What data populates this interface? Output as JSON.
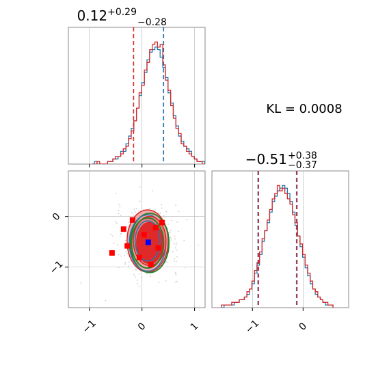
{
  "colors": {
    "blue": "#1f77b4",
    "red": "#d62728",
    "green": "#2a7f2a",
    "fill_outer": "#f2aaaa",
    "fill_mid": "#e77b7b",
    "fill_inner": "#e02a2a",
    "grid": "#b0b0b0",
    "scatter": "#cccccc",
    "blue_point": "#0000ff",
    "red_point": "#ff0000"
  },
  "chart_data": [
    {
      "type": "histogram",
      "panel": "top-left",
      "title": {
        "main": "0.12",
        "sup": "+0.29",
        "sub": "−0.28"
      },
      "xlim": [
        -1.4,
        1.2
      ],
      "xticks": [
        -1,
        0,
        1
      ],
      "grid": true,
      "bin_width": 0.05,
      "series": [
        {
          "color": "blue",
          "counts": [
            0,
            1,
            0,
            0,
            0,
            0,
            1,
            1,
            2,
            2,
            3,
            5,
            5,
            8,
            11,
            14,
            17,
            22,
            27,
            32,
            36,
            41,
            44,
            45,
            46,
            45,
            42,
            38,
            34,
            28,
            24,
            19,
            15,
            11,
            9,
            7,
            6,
            5,
            3,
            2,
            1,
            1,
            1
          ]
        },
        {
          "color": "red",
          "counts": [
            0,
            0,
            1,
            0,
            0,
            0,
            1,
            1,
            2,
            3,
            3,
            4,
            6,
            7,
            10,
            13,
            17,
            22,
            28,
            31,
            37,
            40,
            45,
            47,
            48,
            46,
            47,
            39,
            33,
            29,
            23,
            18,
            14,
            12,
            8,
            7,
            5,
            4,
            3,
            2,
            1,
            1,
            0
          ]
        }
      ],
      "vlines": [
        {
          "x": -0.16,
          "color": "red",
          "style": "dashed"
        },
        {
          "x": 0.41,
          "color": "red",
          "style": "dashed"
        },
        {
          "x": 0.41,
          "color": "blue",
          "style": "dashed"
        }
      ]
    },
    {
      "type": "histogram",
      "panel": "bottom-right",
      "title": {
        "main": "−0.51",
        "sup": "+0.38",
        "sub": "−0.37"
      },
      "xlim": [
        -1.8,
        0.9
      ],
      "xticks": [
        -1,
        0
      ],
      "grid": true,
      "bin_width": 0.05,
      "series": [
        {
          "color": "blue",
          "counts": [
            0,
            1,
            1,
            1,
            1,
            2,
            2,
            3,
            3,
            4,
            5,
            7,
            9,
            13,
            16,
            20,
            25,
            29,
            32,
            36,
            40,
            42,
            44,
            45,
            46,
            45,
            43,
            40,
            36,
            31,
            27,
            23,
            19,
            15,
            12,
            9,
            7,
            5,
            4,
            3,
            2,
            1,
            1,
            1
          ]
        },
        {
          "color": "red",
          "counts": [
            1,
            1,
            1,
            1,
            2,
            2,
            2,
            3,
            3,
            4,
            6,
            7,
            10,
            14,
            17,
            21,
            26,
            29,
            33,
            37,
            41,
            43,
            46,
            44,
            45,
            43,
            41,
            39,
            35,
            32,
            27,
            24,
            20,
            16,
            13,
            10,
            7,
            6,
            4,
            3,
            2,
            2,
            1,
            1
          ]
        }
      ],
      "vlines": [
        {
          "x": -0.89,
          "color": "blue",
          "style": "dashed"
        },
        {
          "x": -0.88,
          "color": "red",
          "style": "dashed"
        },
        {
          "x": -0.13,
          "color": "blue",
          "style": "dashed"
        },
        {
          "x": -0.12,
          "color": "red",
          "style": "dashed"
        }
      ]
    },
    {
      "type": "scatter",
      "panel": "bottom-left",
      "xlim": [
        -1.4,
        1.2
      ],
      "ylim": [
        -1.8,
        0.9
      ],
      "xticks": [
        -1,
        0,
        1
      ],
      "yticks": [
        0,
        -1
      ],
      "grid": true,
      "center": {
        "x": 0.12,
        "y": -0.51
      },
      "contours": [
        {
          "color": "red",
          "fill": "fill_outer",
          "rx": 0.63,
          "ry": 0.62
        },
        {
          "color": "green",
          "rx": 0.59,
          "ry": 0.59
        },
        {
          "color": "blue",
          "rx": 0.56,
          "ry": 0.56
        },
        {
          "color": "red",
          "fill": "fill_mid",
          "rx": 0.5,
          "ry": 0.49
        },
        {
          "color": "green",
          "rx": 0.49,
          "ry": 0.5
        },
        {
          "color": "red",
          "fill": "fill_inner",
          "rx": 0.4,
          "ry": 0.41
        },
        {
          "color": "blue",
          "rx": 0.38,
          "ry": 0.4
        }
      ],
      "red_points": [
        [
          -0.18,
          -0.07
        ],
        [
          0.26,
          -0.22
        ],
        [
          -0.28,
          -0.58
        ],
        [
          0.31,
          -0.62
        ],
        [
          -0.05,
          -0.81
        ],
        [
          -0.57,
          -0.72
        ],
        [
          0.04,
          -0.36
        ],
        [
          -0.35,
          -0.25
        ],
        [
          0.17,
          -0.95
        ],
        [
          0.38,
          -0.12
        ]
      ],
      "blue_point": [
        0.12,
        -0.51
      ]
    }
  ],
  "annotation": "KL = 0.0008"
}
